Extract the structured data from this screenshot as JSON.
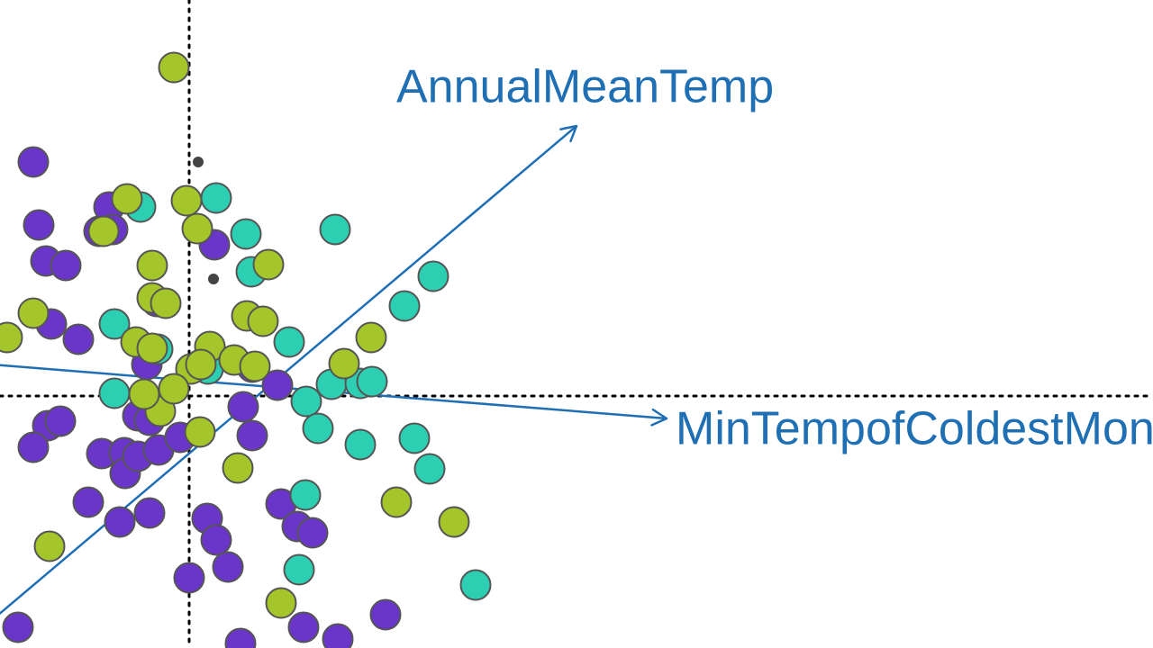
{
  "chart_data": {
    "type": "scatter",
    "subtype": "biplot",
    "xlim": [
      -2.1,
      10.7
    ],
    "ylim": [
      -2.8,
      4.4
    ],
    "grid": false,
    "reference_lines": {
      "x": 0,
      "y": 0,
      "style": "dotted",
      "color": "#000000"
    },
    "colors": {
      "purple": "#6a35c9",
      "teal": "#2ccfb2",
      "green": "#a4c62a",
      "loading": "#1f6fb5",
      "marker_edge": "#555555",
      "small_point": "#444444"
    },
    "loadings": [
      {
        "label": "AnnualMeanTemp",
        "end": [
          4.3,
          3.0
        ],
        "label_pos": [
          2.3,
          3.4
        ],
        "tail": [
          -2.2,
          -2.5
        ]
      },
      {
        "label": "MinTempofColdestMonth",
        "end": [
          5.3,
          -0.25
        ],
        "label_pos": [
          5.4,
          -0.4
        ],
        "tail": [
          -2.2,
          0.35
        ]
      }
    ],
    "small_points": [
      {
        "x": 0.1,
        "y": 2.6
      },
      {
        "x": 0.27,
        "y": 1.3
      }
    ],
    "series": [
      {
        "color_key": "purple",
        "points": [
          {
            "x": -1.73,
            "y": 2.6
          },
          {
            "x": -1.67,
            "y": 1.9
          },
          {
            "x": -1.59,
            "y": 1.5
          },
          {
            "x": -1.37,
            "y": 1.45
          },
          {
            "x": -1.0,
            "y": 1.83
          },
          {
            "x": -0.89,
            "y": 2.1
          },
          {
            "x": -1.53,
            "y": 0.8
          },
          {
            "x": -1.23,
            "y": 0.63
          },
          {
            "x": -0.47,
            "y": 0.35
          },
          {
            "x": -1.57,
            "y": -0.33
          },
          {
            "x": -1.43,
            "y": -0.28
          },
          {
            "x": -1.73,
            "y": -0.57
          },
          {
            "x": -0.97,
            "y": -0.64
          },
          {
            "x": -0.72,
            "y": -0.63
          },
          {
            "x": -0.71,
            "y": -0.86
          },
          {
            "x": -0.57,
            "y": -0.67
          },
          {
            "x": -0.34,
            "y": -0.6
          },
          {
            "x": -0.57,
            "y": -0.22
          },
          {
            "x": -0.44,
            "y": -0.27
          },
          {
            "x": -0.1,
            "y": -0.46
          },
          {
            "x": 0.6,
            "y": -0.12
          },
          {
            "x": 0.7,
            "y": -0.44
          },
          {
            "x": 0.98,
            "y": 0.12
          },
          {
            "x": 0.7,
            "y": 0.32
          },
          {
            "x": -1.12,
            "y": -1.18
          },
          {
            "x": -0.77,
            "y": -1.4
          },
          {
            "x": -0.44,
            "y": -1.3
          },
          {
            "x": 0.2,
            "y": -1.36
          },
          {
            "x": 0.3,
            "y": -1.6
          },
          {
            "x": 0.43,
            "y": -1.9
          },
          {
            "x": 0.0,
            "y": -2.02
          },
          {
            "x": 1.02,
            "y": -1.2
          },
          {
            "x": 1.2,
            "y": -1.45
          },
          {
            "x": 1.37,
            "y": -1.52
          },
          {
            "x": 2.18,
            "y": -2.43
          },
          {
            "x": -1.9,
            "y": -2.57
          },
          {
            "x": 1.27,
            "y": -2.57
          },
          {
            "x": 1.65,
            "y": -2.7
          },
          {
            "x": 0.57,
            "y": -2.75
          },
          {
            "x": 0.28,
            "y": 1.68
          },
          {
            "x": -0.85,
            "y": 1.85
          },
          {
            "x": -0.36,
            "y": 1.05
          }
        ]
      },
      {
        "color_key": "teal",
        "points": [
          {
            "x": -0.54,
            "y": 2.1
          },
          {
            "x": 0.3,
            "y": 2.2
          },
          {
            "x": 0.63,
            "y": 1.8
          },
          {
            "x": 1.62,
            "y": 1.85
          },
          {
            "x": 0.69,
            "y": 1.38
          },
          {
            "x": 2.71,
            "y": 1.33
          },
          {
            "x": 2.39,
            "y": 1.0
          },
          {
            "x": -0.83,
            "y": 0.8
          },
          {
            "x": -0.35,
            "y": 0.52
          },
          {
            "x": 1.11,
            "y": 0.6
          },
          {
            "x": 1.58,
            "y": 0.13
          },
          {
            "x": 1.9,
            "y": 0.14
          },
          {
            "x": 2.03,
            "y": 0.16
          },
          {
            "x": 1.3,
            "y": -0.06
          },
          {
            "x": -0.83,
            "y": 0.03
          },
          {
            "x": 1.43,
            "y": -0.36
          },
          {
            "x": 1.9,
            "y": -0.54
          },
          {
            "x": 2.5,
            "y": -0.47
          },
          {
            "x": 2.67,
            "y": -0.81
          },
          {
            "x": 1.29,
            "y": -1.1
          },
          {
            "x": 3.18,
            "y": -2.1
          },
          {
            "x": 1.22,
            "y": -1.93
          },
          {
            "x": 0.21,
            "y": 0.3
          }
        ]
      },
      {
        "color_key": "green",
        "points": [
          {
            "x": -0.17,
            "y": 3.65
          },
          {
            "x": -0.69,
            "y": 2.19
          },
          {
            "x": -0.95,
            "y": 1.83
          },
          {
            "x": -0.03,
            "y": 2.17
          },
          {
            "x": 0.09,
            "y": 1.86
          },
          {
            "x": 0.88,
            "y": 1.46
          },
          {
            "x": -0.41,
            "y": 1.45
          },
          {
            "x": -0.41,
            "y": 1.09
          },
          {
            "x": -0.26,
            "y": 1.03
          },
          {
            "x": -1.73,
            "y": 0.92
          },
          {
            "x": 0.64,
            "y": 0.89
          },
          {
            "x": 0.82,
            "y": 0.83
          },
          {
            "x": -2.02,
            "y": 0.65
          },
          {
            "x": 2.02,
            "y": 0.65
          },
          {
            "x": -0.59,
            "y": 0.6
          },
          {
            "x": -0.41,
            "y": 0.53
          },
          {
            "x": 0.23,
            "y": 0.55
          },
          {
            "x": 0.5,
            "y": 0.4
          },
          {
            "x": 0.73,
            "y": 0.33
          },
          {
            "x": 0.02,
            "y": 0.3
          },
          {
            "x": 0.13,
            "y": 0.35
          },
          {
            "x": 1.72,
            "y": 0.36
          },
          {
            "x": -0.32,
            "y": -0.17
          },
          {
            "x": 0.12,
            "y": -0.4
          },
          {
            "x": 0.54,
            "y": -0.8
          },
          {
            "x": 2.3,
            "y": -1.18
          },
          {
            "x": 2.94,
            "y": -1.4
          },
          {
            "x": -1.55,
            "y": -1.67
          },
          {
            "x": 1.02,
            "y": -2.3
          },
          {
            "x": -0.5,
            "y": 0.02
          },
          {
            "x": -0.17,
            "y": 0.08
          }
        ]
      }
    ]
  }
}
